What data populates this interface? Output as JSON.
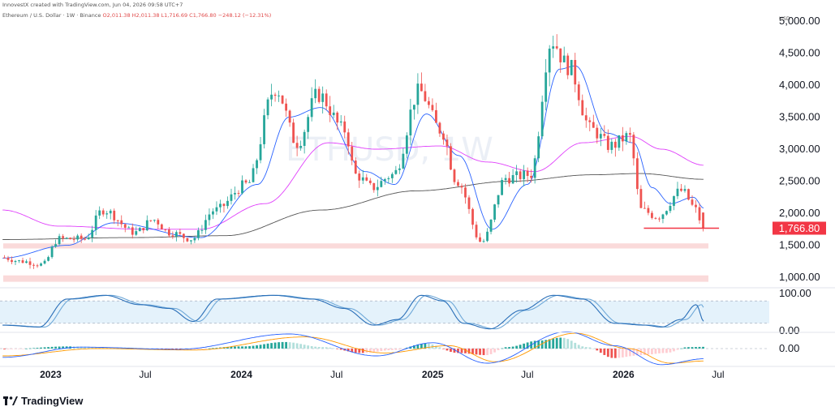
{
  "header": {
    "attribution": "InnovestX created with TradingView.com, Jun 04, 2026 09:58 UTC+7",
    "title": "Ethereum / U.S. Dollar · 1W · Binance",
    "ohlc": "O2,011.38 H2,011.38 L1,716.69 C1,766.80 −248.12 (−12.31%)",
    "currency": "USD"
  },
  "watermark": "ETHUSD, 1W",
  "brand": "TradingView",
  "colors": {
    "up": "#26a69a",
    "down": "#ef5350",
    "ma_fast": "#2962ff",
    "ma_mid": "#e040fb",
    "ma_slow": "#555555",
    "support_zone": "#f9d3d3",
    "stoch_band": "#e4f2fb",
    "price_label": "#f23645"
  },
  "chart_data": [
    {
      "type": "candlestick",
      "title": "Ethereum / U.S. Dollar · 1W · Binance",
      "ylabel": "USD",
      "y_ticks": [
        "5,000.00",
        "4,500.00",
        "4,000.00",
        "3,500.00",
        "3,000.00",
        "2,500.00",
        "2,000.00",
        "1,500.00",
        "1,000.00"
      ],
      "ylim": [
        900,
        5050
      ],
      "x_ticks": [
        {
          "label": "2023",
          "x": "2023-01-01",
          "year": true
        },
        {
          "label": "Jul",
          "x": "2023-07-01",
          "year": false
        },
        {
          "label": "2024",
          "x": "2024-01-01",
          "year": true
        },
        {
          "label": "Jul",
          "x": "2024-07-01",
          "year": false
        },
        {
          "label": "2025",
          "x": "2025-01-01",
          "year": true
        },
        {
          "label": "Jul",
          "x": "2025-07-01",
          "year": false
        },
        {
          "label": "2026",
          "x": "2026-01-01",
          "year": true
        },
        {
          "label": "Jul",
          "x": "2026-07-01",
          "year": false
        }
      ],
      "xlim": [
        "2022-09-26",
        "2026-10-07"
      ],
      "last_price": "1,766.80",
      "support_zones": [
        [
          1450,
          1530
        ],
        [
          930,
          1030
        ]
      ],
      "support_line": {
        "y": 1766.8,
        "from": "2026-02-09",
        "to": "2026-06-08"
      },
      "path_anchors": [
        {
          "t": "2022-10-01",
          "v": 1310
        },
        {
          "t": "2022-11-10",
          "v": 1250
        },
        {
          "t": "2022-12-20",
          "v": 1200
        },
        {
          "t": "2023-01-20",
          "v": 1600
        },
        {
          "t": "2023-03-10",
          "v": 1600
        },
        {
          "t": "2023-04-15",
          "v": 2050
        },
        {
          "t": "2023-06-15",
          "v": 1700
        },
        {
          "t": "2023-07-20",
          "v": 1900
        },
        {
          "t": "2023-08-20",
          "v": 1700
        },
        {
          "t": "2023-10-01",
          "v": 1600
        },
        {
          "t": "2023-11-15",
          "v": 2050
        },
        {
          "t": "2024-01-15",
          "v": 2450
        },
        {
          "t": "2024-03-10",
          "v": 3950
        },
        {
          "t": "2024-04-20",
          "v": 3100
        },
        {
          "t": "2024-05-30",
          "v": 3850
        },
        {
          "t": "2024-07-20",
          "v": 3300
        },
        {
          "t": "2024-08-10",
          "v": 2600
        },
        {
          "t": "2024-09-10",
          "v": 2400
        },
        {
          "t": "2024-10-20",
          "v": 2600
        },
        {
          "t": "2024-12-10",
          "v": 3900
        },
        {
          "t": "2025-01-20",
          "v": 3300
        },
        {
          "t": "2025-02-20",
          "v": 2500
        },
        {
          "t": "2025-04-08",
          "v": 1550
        },
        {
          "t": "2025-05-25",
          "v": 2550
        },
        {
          "t": "2025-07-10",
          "v": 2600
        },
        {
          "t": "2025-08-20",
          "v": 4700
        },
        {
          "t": "2025-09-20",
          "v": 4300
        },
        {
          "t": "2025-11-05",
          "v": 3300
        },
        {
          "t": "2025-12-10",
          "v": 3050
        },
        {
          "t": "2026-01-15",
          "v": 3200
        },
        {
          "t": "2026-02-08",
          "v": 2050
        },
        {
          "t": "2026-03-10",
          "v": 1950
        },
        {
          "t": "2026-04-25",
          "v": 2350
        },
        {
          "t": "2026-05-25",
          "v": 2050
        },
        {
          "t": "2026-06-04",
          "v": 1767
        }
      ],
      "ma_fast_anchors": [
        {
          "t": "2022-10-01",
          "v": 1300
        },
        {
          "t": "2023-02-01",
          "v": 1500
        },
        {
          "t": "2023-05-01",
          "v": 1850
        },
        {
          "t": "2023-10-15",
          "v": 1620
        },
        {
          "t": "2024-02-01",
          "v": 2450
        },
        {
          "t": "2024-04-01",
          "v": 3500
        },
        {
          "t": "2024-06-01",
          "v": 3650
        },
        {
          "t": "2024-08-25",
          "v": 2650
        },
        {
          "t": "2024-10-20",
          "v": 2450
        },
        {
          "t": "2024-12-20",
          "v": 3550
        },
        {
          "t": "2025-02-20",
          "v": 2900
        },
        {
          "t": "2025-04-25",
          "v": 1750
        },
        {
          "t": "2025-07-01",
          "v": 2450
        },
        {
          "t": "2025-09-01",
          "v": 4250
        },
        {
          "t": "2025-10-01",
          "v": 4300
        },
        {
          "t": "2025-12-01",
          "v": 3250
        },
        {
          "t": "2026-01-20",
          "v": 3100
        },
        {
          "t": "2026-02-25",
          "v": 2400
        },
        {
          "t": "2026-04-01",
          "v": 2150
        },
        {
          "t": "2026-05-15",
          "v": 2250
        },
        {
          "t": "2026-06-04",
          "v": 2080
        }
      ],
      "ma_mid_anchors": [
        {
          "t": "2022-10-01",
          "v": 2050
        },
        {
          "t": "2023-01-15",
          "v": 1800
        },
        {
          "t": "2023-07-01",
          "v": 1750
        },
        {
          "t": "2023-10-15",
          "v": 1750
        },
        {
          "t": "2024-02-15",
          "v": 2150
        },
        {
          "t": "2024-06-15",
          "v": 3100
        },
        {
          "t": "2024-09-15",
          "v": 3000
        },
        {
          "t": "2025-01-15",
          "v": 3050
        },
        {
          "t": "2025-04-15",
          "v": 2800
        },
        {
          "t": "2025-07-15",
          "v": 2650
        },
        {
          "t": "2025-10-15",
          "v": 3100
        },
        {
          "t": "2026-01-15",
          "v": 3200
        },
        {
          "t": "2026-03-15",
          "v": 3000
        },
        {
          "t": "2026-06-04",
          "v": 2750
        }
      ],
      "ma_slow_anchors": [
        {
          "t": "2022-10-01",
          "v": 1590
        },
        {
          "t": "2023-06-01",
          "v": 1620
        },
        {
          "t": "2023-12-01",
          "v": 1650
        },
        {
          "t": "2024-06-01",
          "v": 2050
        },
        {
          "t": "2024-12-01",
          "v": 2350
        },
        {
          "t": "2025-06-01",
          "v": 2500
        },
        {
          "t": "2025-11-01",
          "v": 2600
        },
        {
          "t": "2026-02-01",
          "v": 2620
        },
        {
          "t": "2026-06-04",
          "v": 2530
        }
      ]
    },
    {
      "type": "line",
      "title": "",
      "ylim": [
        0,
        100
      ],
      "y_ticks": [
        "100.00",
        "0.00"
      ],
      "band": [
        20,
        80
      ],
      "k_anchors": [
        {
          "t": "2022-10-01",
          "v": 15
        },
        {
          "t": "2022-12-10",
          "v": 10
        },
        {
          "t": "2023-02-01",
          "v": 85
        },
        {
          "t": "2023-04-15",
          "v": 95
        },
        {
          "t": "2023-06-20",
          "v": 70
        },
        {
          "t": "2023-08-15",
          "v": 60
        },
        {
          "t": "2023-10-01",
          "v": 25
        },
        {
          "t": "2023-11-15",
          "v": 85
        },
        {
          "t": "2024-03-01",
          "v": 95
        },
        {
          "t": "2024-05-15",
          "v": 85
        },
        {
          "t": "2024-07-15",
          "v": 60
        },
        {
          "t": "2024-09-10",
          "v": 15
        },
        {
          "t": "2024-10-25",
          "v": 30
        },
        {
          "t": "2024-12-10",
          "v": 95
        },
        {
          "t": "2025-01-20",
          "v": 80
        },
        {
          "t": "2025-03-01",
          "v": 20
        },
        {
          "t": "2025-04-20",
          "v": 5
        },
        {
          "t": "2025-06-20",
          "v": 55
        },
        {
          "t": "2025-08-20",
          "v": 95
        },
        {
          "t": "2025-10-15",
          "v": 85
        },
        {
          "t": "2025-12-15",
          "v": 20
        },
        {
          "t": "2026-02-10",
          "v": 15
        },
        {
          "t": "2026-03-15",
          "v": 10
        },
        {
          "t": "2026-04-20",
          "v": 30
        },
        {
          "t": "2026-05-20",
          "v": 70
        },
        {
          "t": "2026-06-04",
          "v": 25
        }
      ]
    },
    {
      "type": "bar",
      "title": "",
      "ylim": [
        -1,
        1
      ],
      "y_ticks": [
        "0.00"
      ],
      "hist_anchors": [
        {
          "t": "2022-10-01",
          "v": -0.05
        },
        {
          "t": "2023-02-01",
          "v": 0.15
        },
        {
          "t": "2023-05-01",
          "v": 0.08
        },
        {
          "t": "2023-09-01",
          "v": -0.1
        },
        {
          "t": "2024-01-01",
          "v": 0.15
        },
        {
          "t": "2024-03-20",
          "v": 0.45
        },
        {
          "t": "2024-06-01",
          "v": 0.1
        },
        {
          "t": "2024-08-15",
          "v": -0.3
        },
        {
          "t": "2024-10-15",
          "v": -0.1
        },
        {
          "t": "2024-12-15",
          "v": 0.35
        },
        {
          "t": "2025-02-15",
          "v": -0.3
        },
        {
          "t": "2025-04-10",
          "v": -0.45
        },
        {
          "t": "2025-05-20",
          "v": 0.1
        },
        {
          "t": "2025-07-20",
          "v": 0.55
        },
        {
          "t": "2025-09-01",
          "v": 0.75
        },
        {
          "t": "2025-10-20",
          "v": 0.1
        },
        {
          "t": "2025-12-10",
          "v": -0.65
        },
        {
          "t": "2026-02-01",
          "v": -0.45
        },
        {
          "t": "2026-03-20",
          "v": -0.3
        },
        {
          "t": "2026-05-01",
          "v": 0.1
        },
        {
          "t": "2026-06-04",
          "v": 0.12
        }
      ],
      "macd_anchors": [
        {
          "t": "2022-10-01",
          "v": -0.6
        },
        {
          "t": "2023-03-01",
          "v": 0.1
        },
        {
          "t": "2023-09-01",
          "v": -0.05
        },
        {
          "t": "2024-04-01",
          "v": 1.0
        },
        {
          "t": "2024-09-15",
          "v": -0.5
        },
        {
          "t": "2025-01-01",
          "v": 0.4
        },
        {
          "t": "2025-04-15",
          "v": -1.0
        },
        {
          "t": "2025-09-15",
          "v": 1.15
        },
        {
          "t": "2025-12-15",
          "v": 0.2
        },
        {
          "t": "2026-03-15",
          "v": -1.1
        },
        {
          "t": "2026-06-04",
          "v": -0.7
        }
      ],
      "signal_anchors": [
        {
          "t": "2022-10-01",
          "v": -0.5
        },
        {
          "t": "2023-04-01",
          "v": 0.0
        },
        {
          "t": "2023-10-01",
          "v": -0.1
        },
        {
          "t": "2024-05-01",
          "v": 0.8
        },
        {
          "t": "2024-10-01",
          "v": -0.3
        },
        {
          "t": "2025-02-01",
          "v": 0.2
        },
        {
          "t": "2025-05-01",
          "v": -0.9
        },
        {
          "t": "2025-10-01",
          "v": 1.05
        },
        {
          "t": "2026-01-10",
          "v": 0.0
        },
        {
          "t": "2026-04-01",
          "v": -1.0
        },
        {
          "t": "2026-06-04",
          "v": -0.85
        }
      ]
    }
  ]
}
